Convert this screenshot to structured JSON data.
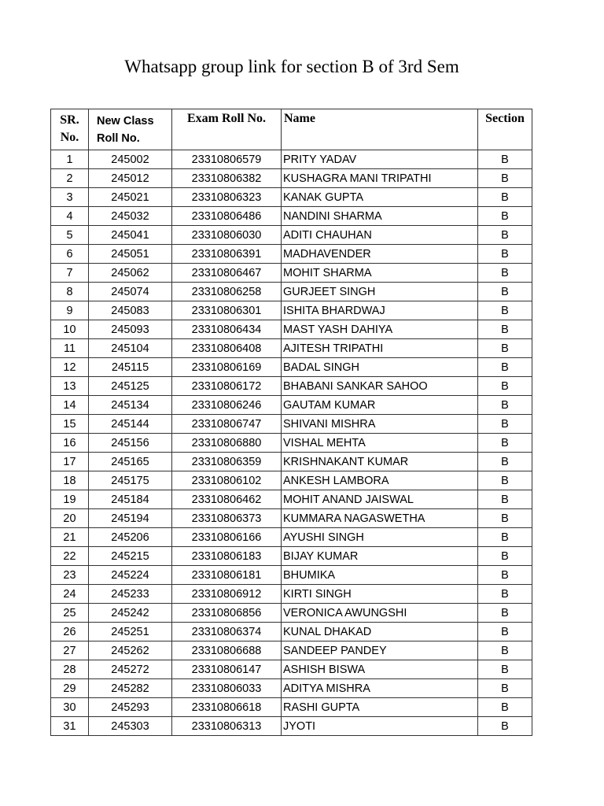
{
  "title": "Whatsapp group link for section B of 3rd Sem",
  "table": {
    "headers": {
      "sr_line1": "SR.",
      "sr_line2": "No.",
      "class_roll_line1": "New Class",
      "class_roll_line2": "Roll No.",
      "exam_roll": "Exam Roll No.",
      "name": "Name",
      "section": "Section"
    },
    "rows": [
      [
        "1",
        "245002",
        "23310806579",
        "PRITY YADAV",
        "B"
      ],
      [
        "2",
        "245012",
        "23310806382",
        "KUSHAGRA MANI TRIPATHI",
        "B"
      ],
      [
        "3",
        "245021",
        "23310806323",
        "KANAK GUPTA",
        "B"
      ],
      [
        "4",
        "245032",
        "23310806486",
        "NANDINI SHARMA",
        "B"
      ],
      [
        "5",
        "245041",
        "23310806030",
        "ADITI CHAUHAN",
        "B"
      ],
      [
        "6",
        "245051",
        "23310806391",
        "MADHAVENDER",
        "B"
      ],
      [
        "7",
        "245062",
        "23310806467",
        "MOHIT SHARMA",
        "B"
      ],
      [
        "8",
        "245074",
        "23310806258",
        "GURJEET SINGH",
        "B"
      ],
      [
        "9",
        "245083",
        "23310806301",
        "ISHITA BHARDWAJ",
        "B"
      ],
      [
        "10",
        "245093",
        "23310806434",
        "MAST YASH DAHIYA",
        "B"
      ],
      [
        "11",
        "245104",
        "23310806408",
        "AJITESH TRIPATHI",
        "B"
      ],
      [
        "12",
        "245115",
        "23310806169",
        "BADAL SINGH",
        "B"
      ],
      [
        "13",
        "245125",
        "23310806172",
        "BHABANI SANKAR SAHOO",
        "B"
      ],
      [
        "14",
        "245134",
        "23310806246",
        "GAUTAM KUMAR",
        "B"
      ],
      [
        "15",
        "245144",
        "23310806747",
        "SHIVANI MISHRA",
        "B"
      ],
      [
        "16",
        "245156",
        "23310806880",
        "VISHAL MEHTA",
        "B"
      ],
      [
        "17",
        "245165",
        "23310806359",
        "KRISHNAKANT KUMAR",
        "B"
      ],
      [
        "18",
        "245175",
        "23310806102",
        "ANKESH LAMBORA",
        "B"
      ],
      [
        "19",
        "245184",
        "23310806462",
        "MOHIT ANAND JAISWAL",
        "B"
      ],
      [
        "20",
        "245194",
        "23310806373",
        "KUMMARA NAGASWETHA",
        "B"
      ],
      [
        "21",
        "245206",
        "23310806166",
        "AYUSHI SINGH",
        "B"
      ],
      [
        "22",
        "245215",
        "23310806183",
        "BIJAY KUMAR",
        "B"
      ],
      [
        "23",
        "245224",
        "23310806181",
        "BHUMIKA",
        "B"
      ],
      [
        "24",
        "245233",
        "23310806912",
        "KIRTI SINGH",
        "B"
      ],
      [
        "25",
        "245242",
        "23310806856",
        "VERONICA AWUNGSHI",
        "B"
      ],
      [
        "26",
        "245251",
        "23310806374",
        "KUNAL DHAKAD",
        "B"
      ],
      [
        "27",
        "245262",
        "23310806688",
        "SANDEEP PANDEY",
        "B"
      ],
      [
        "28",
        "245272",
        "23310806147",
        "ASHISH BISWA",
        "B"
      ],
      [
        "29",
        "245282",
        "23310806033",
        "ADITYA MISHRA",
        "B"
      ],
      [
        "30",
        "245293",
        "23310806618",
        "RASHI GUPTA",
        "B"
      ],
      [
        "31",
        "245303",
        "23310806313",
        "JYOTI",
        "B"
      ]
    ]
  }
}
